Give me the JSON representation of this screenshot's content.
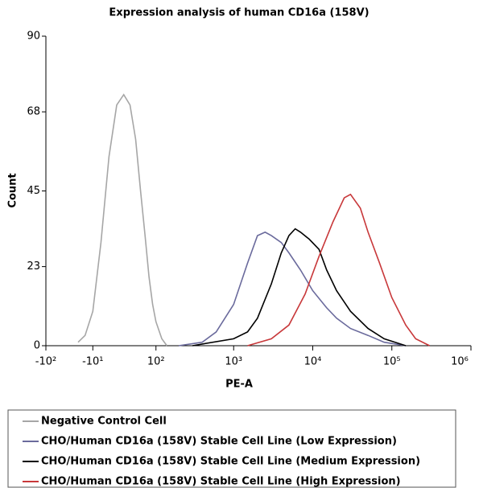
{
  "chart_data": {
    "type": "line",
    "title": "Expression analysis of human CD16a (158V)",
    "x_label": "PE-A",
    "y_label": "Count",
    "xscale": "biexponential",
    "xlim": [
      -100,
      1000000
    ],
    "xticks": [
      {
        "value": -100,
        "label": "-10²"
      },
      {
        "value": -10,
        "label": "-10¹"
      },
      {
        "value": 100,
        "label": "10²"
      },
      {
        "value": 1000,
        "label": "10³"
      },
      {
        "value": 10000,
        "label": "10⁴"
      },
      {
        "value": 100000,
        "label": "10⁵"
      },
      {
        "value": 1000000,
        "label": "10⁶"
      }
    ],
    "ylim": [
      0,
      90
    ],
    "yticks": [
      0,
      23,
      45,
      68,
      90
    ],
    "series": [
      {
        "name": "Negative Control Cell",
        "color": "#a6a6a6",
        "x": [
          -30,
          -20,
          -10,
          0,
          10,
          20,
          30,
          40,
          50,
          60,
          70,
          80,
          90,
          100,
          120,
          140
        ],
        "values": [
          1,
          3,
          10,
          30,
          55,
          70,
          73,
          70,
          60,
          45,
          32,
          20,
          12,
          7,
          2,
          0
        ]
      },
      {
        "name": "CHO/Human CD16a (158V) Stable Cell Line (Low Expression)",
        "color": "#6a6a9c",
        "x": [
          200,
          400,
          600,
          1000,
          1500,
          2000,
          2500,
          3000,
          4000,
          5000,
          7000,
          10000,
          15000,
          20000,
          30000,
          50000,
          80000,
          150000
        ],
        "values": [
          0,
          1,
          4,
          12,
          24,
          32,
          33,
          32,
          30,
          27,
          22,
          16,
          11,
          8,
          5,
          3,
          1,
          0
        ]
      },
      {
        "name": "CHO/Human CD16a (158V) Stable Cell Line (Medium Expression)",
        "color": "#000000",
        "x": [
          300,
          1000,
          1500,
          2000,
          3000,
          4000,
          5000,
          6000,
          7000,
          9000,
          12000,
          15000,
          20000,
          30000,
          50000,
          80000,
          150000
        ],
        "values": [
          0,
          2,
          4,
          8,
          18,
          27,
          32,
          34,
          33,
          31,
          28,
          22,
          16,
          10,
          5,
          2,
          0
        ]
      },
      {
        "name": "CHO/Human CD16a (158V) Stable Cell Line (High Expression)",
        "color": "#c8383a",
        "x": [
          1500,
          3000,
          5000,
          8000,
          12000,
          18000,
          25000,
          30000,
          40000,
          50000,
          70000,
          100000,
          150000,
          200000,
          300000
        ],
        "values": [
          0,
          2,
          6,
          15,
          26,
          36,
          43,
          44,
          40,
          33,
          24,
          14,
          6,
          2,
          0
        ]
      }
    ]
  }
}
